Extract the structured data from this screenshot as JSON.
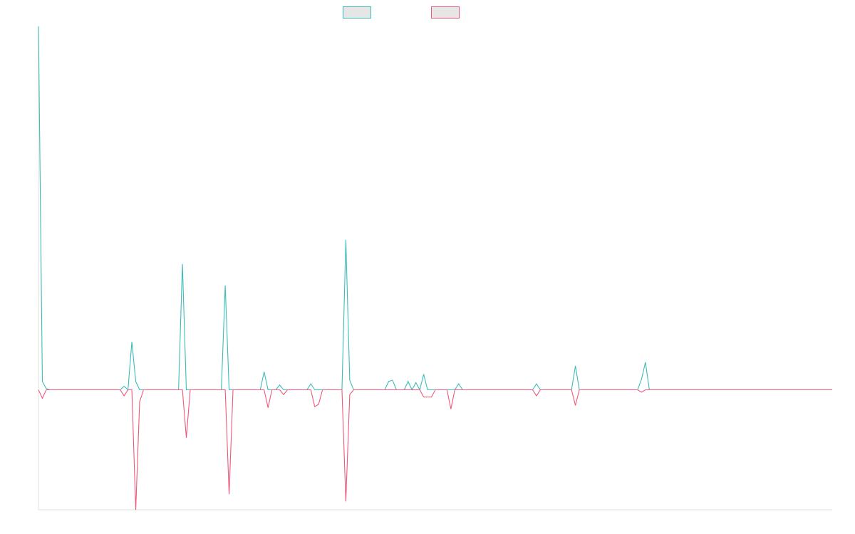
{
  "chart_data": {
    "type": "line",
    "title": "",
    "xlabel": "",
    "ylabel": "",
    "x_count": 205,
    "ylim": [
      -100,
      303
    ],
    "grid": false,
    "legend_position": "top-center",
    "series": [
      {
        "color": "#3cbcb8",
        "points": [
          [
            0,
            303
          ],
          [
            1,
            7
          ],
          [
            2,
            1
          ],
          [
            22,
            3
          ],
          [
            24,
            40
          ],
          [
            25,
            7
          ],
          [
            37,
            105
          ],
          [
            48,
            87
          ],
          [
            58,
            15
          ],
          [
            62,
            4
          ],
          [
            70,
            5
          ],
          [
            79,
            125
          ],
          [
            80,
            8
          ],
          [
            90,
            7
          ],
          [
            91,
            8
          ],
          [
            95,
            7
          ],
          [
            97,
            6
          ],
          [
            99,
            13
          ],
          [
            108,
            5
          ],
          [
            128,
            5
          ],
          [
            138,
            20
          ],
          [
            155,
            9
          ],
          [
            156,
            23
          ]
        ],
        "baseline": 0
      },
      {
        "color": "#f0587a",
        "points": [
          [
            1,
            -7
          ],
          [
            22,
            -5
          ],
          [
            25,
            -100
          ],
          [
            26,
            -10
          ],
          [
            38,
            -40
          ],
          [
            49,
            -87
          ],
          [
            59,
            -15
          ],
          [
            63,
            -4
          ],
          [
            71,
            -14
          ],
          [
            72,
            -12
          ],
          [
            79,
            -93
          ],
          [
            80,
            -4
          ],
          [
            99,
            -6
          ],
          [
            100,
            -6
          ],
          [
            101,
            -6
          ],
          [
            106,
            -16
          ],
          [
            128,
            -5
          ],
          [
            138,
            -13
          ],
          [
            155,
            -2
          ]
        ],
        "baseline": 0
      }
    ]
  }
}
